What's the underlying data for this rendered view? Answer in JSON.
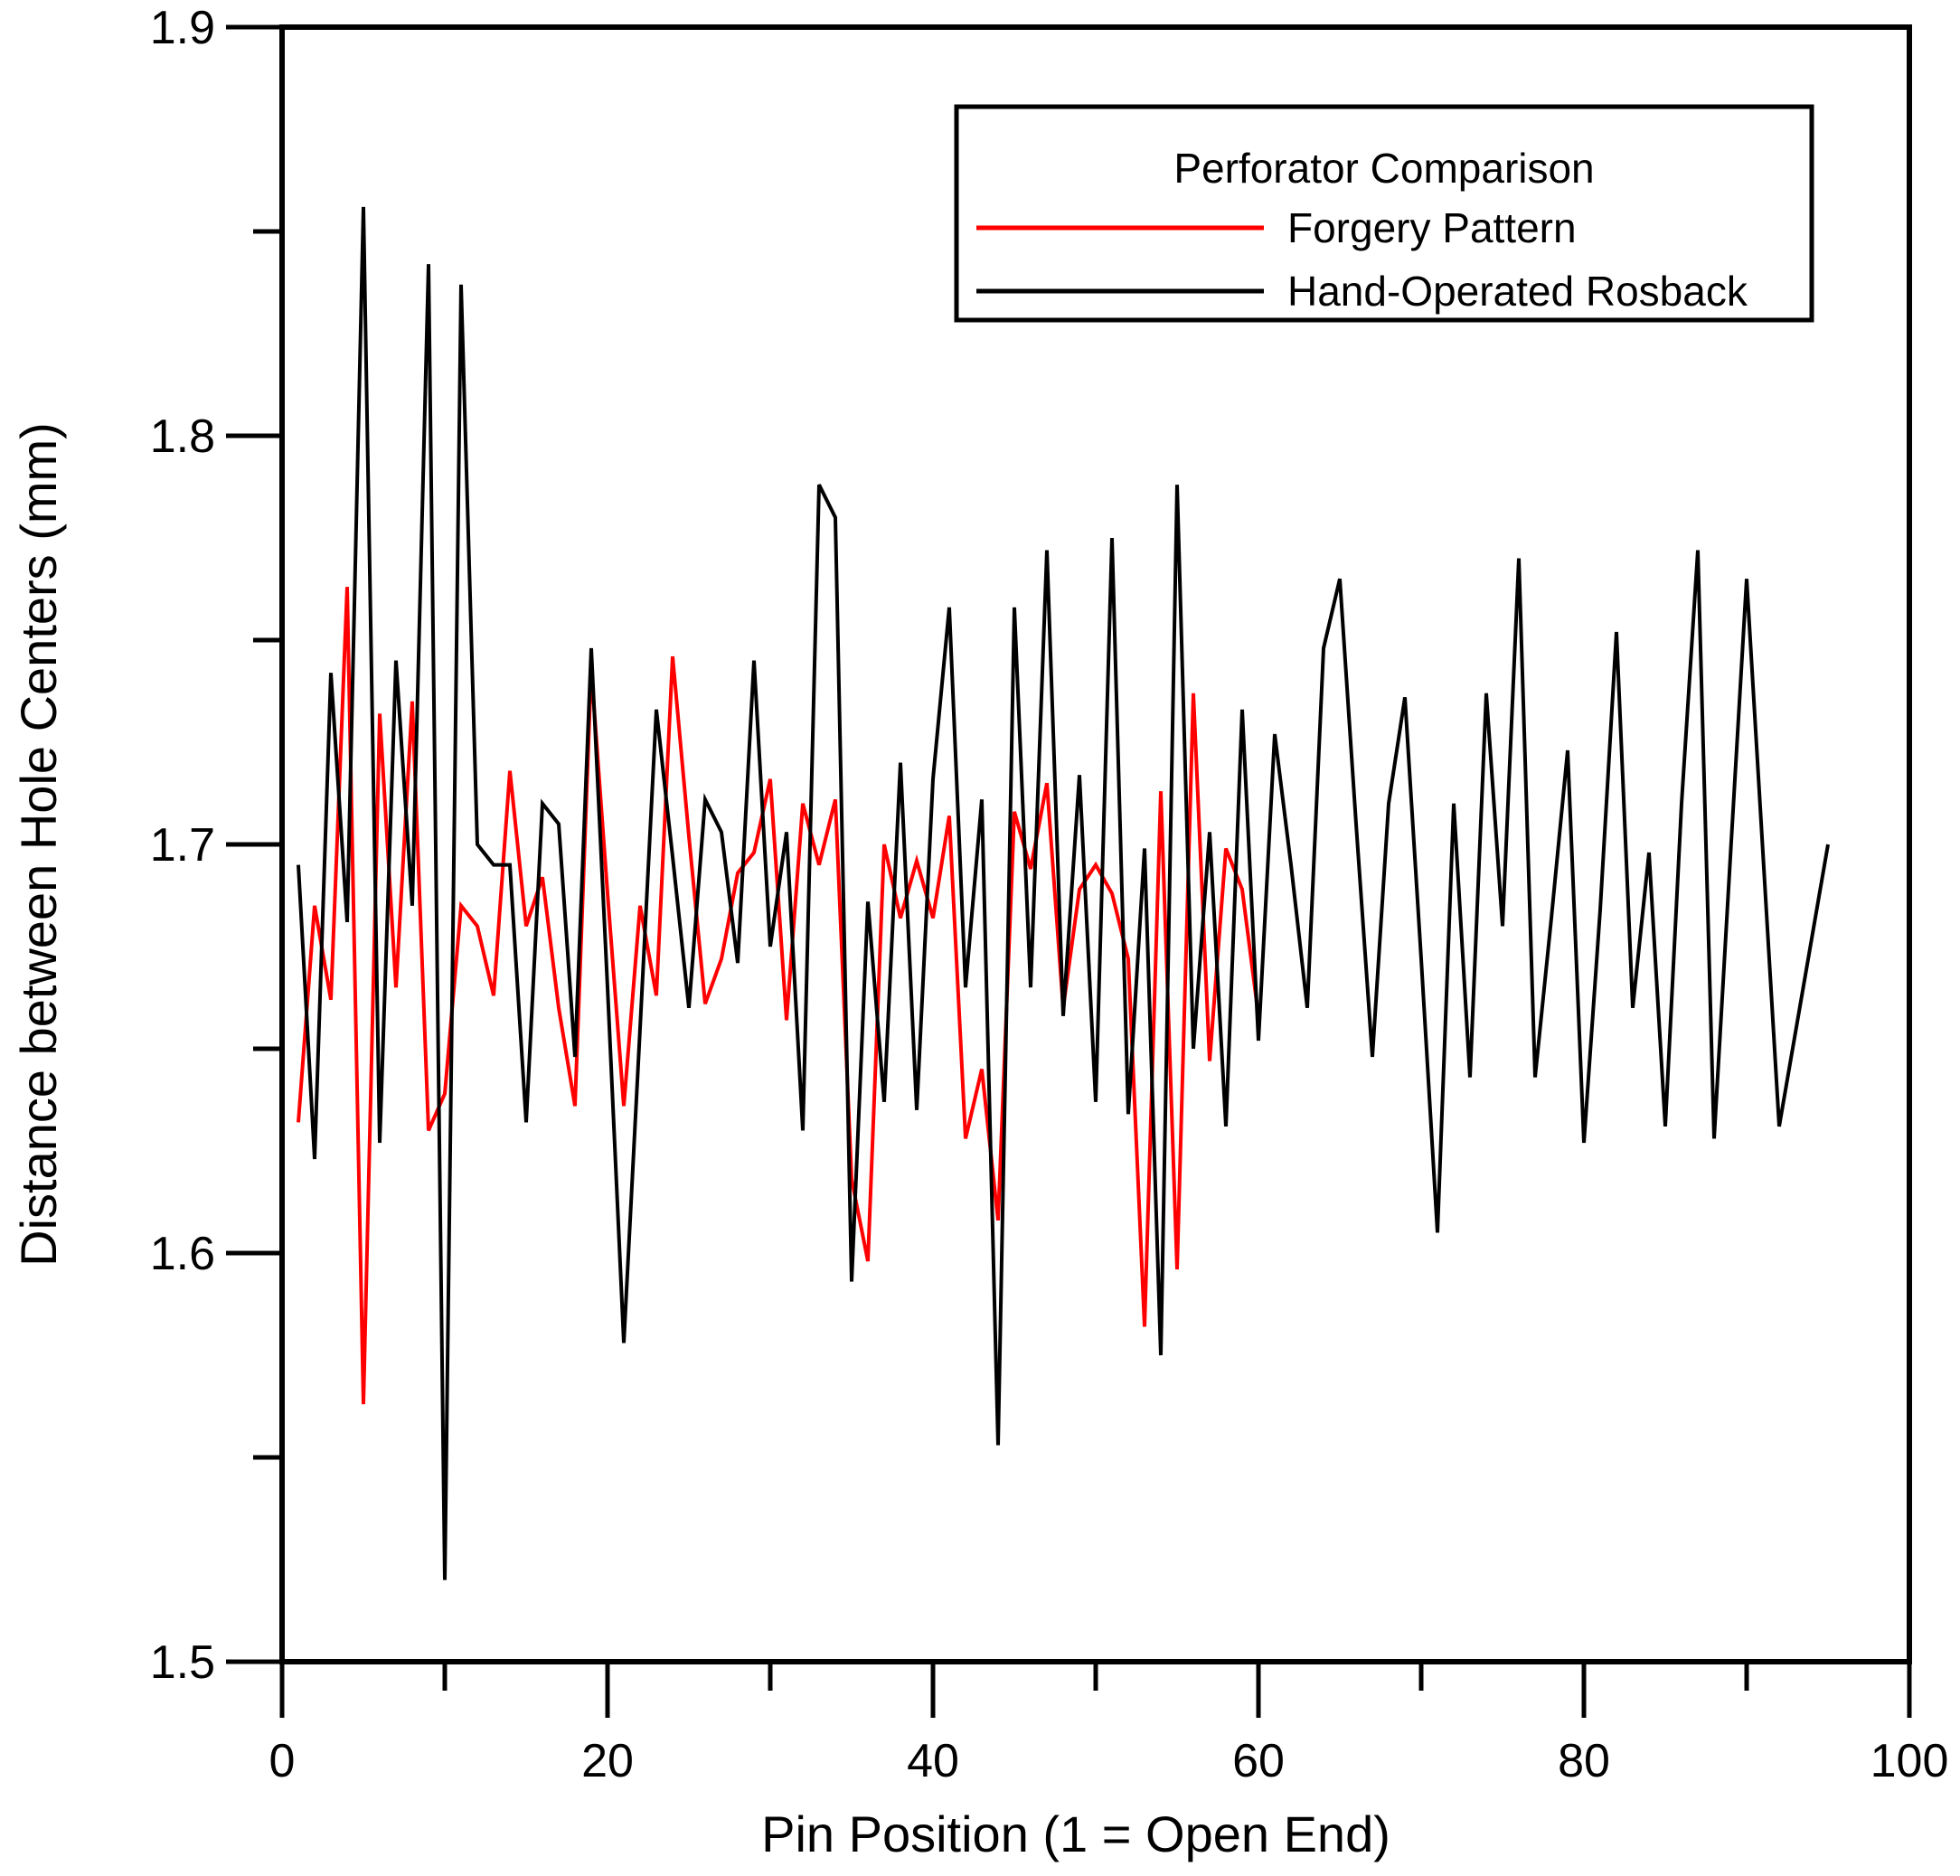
{
  "chart_data": {
    "type": "line",
    "title": "Perforator Comparison",
    "xlabel": "Pin Position (1 = Open End)",
    "ylabel": "Distance between Hole Centers (mm)",
    "xlim": [
      0,
      100
    ],
    "ylim": [
      1.5,
      1.9
    ],
    "grid": false,
    "legend_position": "top-right",
    "x_ticks_major": [
      0,
      20,
      40,
      60,
      80,
      100
    ],
    "x_ticks_minor": [
      10,
      30,
      50,
      70,
      90
    ],
    "x_tick_labels": [
      "0",
      "20",
      "40",
      "60",
      "80",
      "100"
    ],
    "y_ticks_major": [
      1.5,
      1.6,
      1.7,
      1.8,
      1.9
    ],
    "y_ticks_minor": [
      1.55,
      1.65,
      1.75,
      1.85
    ],
    "y_tick_labels": [
      "1.5",
      "1.6",
      "1.7",
      "1.8",
      "1.9"
    ],
    "series": [
      {
        "name": "Forgery Pattern",
        "color": "#ff0000",
        "x_start": 1,
        "x_step": 1,
        "values": [
          1.632,
          1.685,
          1.662,
          1.763,
          1.563,
          1.732,
          1.665,
          1.735,
          1.63,
          1.639,
          1.685,
          1.68,
          1.663,
          1.718,
          1.68,
          1.692,
          1.66,
          1.636,
          1.743,
          1.688,
          1.636,
          1.685,
          1.663,
          1.746,
          1.702,
          1.661,
          1.672,
          1.693,
          1.698,
          1.716,
          1.657,
          1.71,
          1.695,
          1.711,
          1.618,
          1.598,
          1.7,
          1.682,
          1.696,
          1.682,
          1.707,
          1.628,
          1.645,
          1.608,
          1.708,
          1.694,
          1.715,
          1.66,
          1.689,
          1.695,
          1.688,
          1.672,
          1.582,
          1.713,
          1.596,
          1.737,
          1.647,
          1.699,
          1.689,
          1.658
        ]
      },
      {
        "name": "Hand-Operated Rosback",
        "color": "#000000",
        "x_start": 1,
        "x_step": 1,
        "values": [
          1.695,
          1.623,
          1.742,
          1.681,
          1.856,
          1.627,
          1.745,
          1.685,
          1.842,
          1.52,
          1.837,
          1.7,
          1.695,
          1.695,
          1.632,
          1.71,
          1.705,
          1.648,
          1.748,
          1.665,
          1.578,
          1.655,
          1.733,
          1.697,
          1.66,
          1.711,
          1.703,
          1.671,
          1.745,
          1.675,
          1.703,
          1.63,
          1.788,
          1.78,
          1.593,
          1.686,
          1.637,
          1.72,
          1.635,
          1.716,
          1.758,
          1.665,
          1.711,
          1.553,
          1.758,
          1.665,
          1.772,
          1.658,
          1.717,
          1.637,
          1.775,
          1.634,
          1.699,
          1.575,
          1.788,
          1.65,
          1.703,
          1.631,
          1.733,
          1.652,
          1.727,
          1.695,
          1.66,
          1.748,
          1.765,
          1.705,
          1.648,
          1.71,
          1.736,
          1.672,
          1.605,
          1.71,
          1.643,
          1.737,
          1.68,
          1.77,
          1.643,
          1.682,
          1.723,
          1.627,
          1.684,
          1.752,
          1.66,
          1.698,
          1.631,
          1.71,
          1.772,
          1.628,
          1.697,
          1.765,
          1.698,
          1.631,
          1.654,
          1.677,
          1.7
        ]
      }
    ]
  }
}
